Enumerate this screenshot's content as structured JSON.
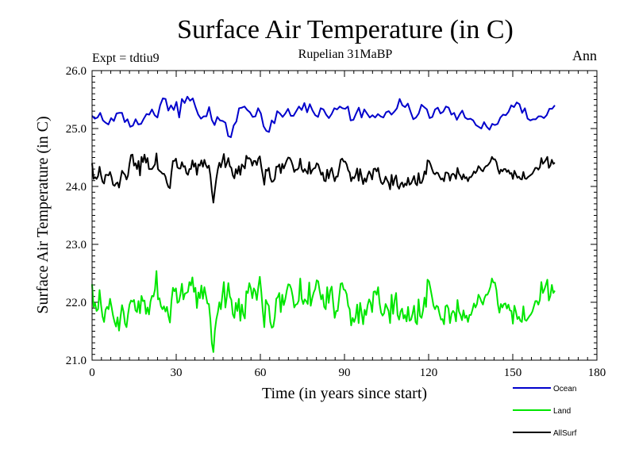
{
  "chart_data": {
    "type": "line",
    "title": "Surface Air Temperature (in C)",
    "subtitle": "Rupelian  31MaBP",
    "left_label": "Expt = tdtiu9",
    "right_label": "Ann",
    "xlabel": "Time (in years since start)",
    "ylabel": "Surface Air Temperature (in C)",
    "xlim": [
      0,
      180
    ],
    "ylim": [
      21,
      26
    ],
    "xticks": [
      0,
      30,
      60,
      90,
      120,
      150,
      180
    ],
    "xtick_labels": [
      "0",
      "30",
      "60",
      "90",
      "120",
      "150",
      "180"
    ],
    "yticks": [
      21,
      22,
      23,
      24,
      25,
      26
    ],
    "ytick_labels": [
      "21.0",
      "22.0",
      "23.0",
      "24.0",
      "25.0",
      "26.0"
    ],
    "legend_position": "bottom-right, outside plot",
    "series": [
      {
        "name": "Ocean",
        "color": "#0000cc",
        "values": [
          25.22,
          25.17,
          25.19,
          25.27,
          25.14,
          25.1,
          25.07,
          25.18,
          25.13,
          25.26,
          25.27,
          25.27,
          25.11,
          25.16,
          25.03,
          25.05,
          25.16,
          25.07,
          25.08,
          25.17,
          25.25,
          25.24,
          25.33,
          25.23,
          25.19,
          25.4,
          25.52,
          25.51,
          25.31,
          25.4,
          25.32,
          25.46,
          25.19,
          25.51,
          25.44,
          25.55,
          25.48,
          25.52,
          25.37,
          25.24,
          25.17,
          25.21,
          25.21,
          25.37,
          25.15,
          25.06,
          25.2,
          25.14,
          25.13,
          25.1,
          24.87,
          24.85,
          25.05,
          25.12,
          25.35,
          25.36,
          25.38,
          25.32,
          25.28,
          25.2,
          25.21,
          25.35,
          25.26,
          25.04,
          24.96,
          24.94,
          25.14,
          25.09,
          25.3,
          25.26,
          25.2,
          25.26,
          25.34,
          25.22,
          25.22,
          25.3,
          25.38,
          25.32,
          25.44,
          25.28,
          25.42,
          25.31,
          25.23,
          25.2,
          25.35,
          25.33,
          25.24,
          25.18,
          25.25,
          25.35,
          25.33,
          25.38,
          25.35,
          25.34,
          25.38,
          25.14,
          25.15,
          25.26,
          25.36,
          25.19,
          25.33,
          25.26,
          25.19,
          25.23,
          25.19,
          25.25,
          25.21,
          25.19,
          25.28,
          25.3,
          25.24,
          25.29,
          25.35,
          25.51,
          25.4,
          25.37,
          25.43,
          25.29,
          25.16,
          25.19,
          25.26,
          25.41,
          25.37,
          25.33,
          25.18,
          25.2,
          25.33,
          25.36,
          25.26,
          25.29,
          25.38,
          25.36,
          25.24,
          25.27,
          25.15,
          25.24,
          25.31,
          25.19,
          25.16,
          25.17,
          25.14,
          25.06,
          25.03,
          25.0,
          25.11,
          25.03,
          24.98,
          25.08,
          25.06,
          25.08,
          25.19,
          25.24,
          25.23,
          25.29,
          25.4,
          25.37,
          25.45,
          25.42,
          25.27,
          25.35,
          25.17,
          25.14,
          25.16,
          25.16,
          25.21,
          25.21,
          25.18,
          25.23,
          25.34,
          25.34,
          25.4
        ]
      },
      {
        "name": "Land",
        "color": "#00e600",
        "values": [
          22.31,
          21.92,
          21.98,
          21.85,
          21.88,
          22.21,
          21.95,
          21.75,
          21.66,
          21.87,
          21.92,
          21.88,
          22.06,
          21.92,
          21.77,
          21.66,
          21.58,
          21.74,
          21.51,
          21.75,
          21.95,
          21.84,
          21.63,
          21.57,
          21.79,
          21.96,
          22.03,
          22.01,
          22.04,
          21.86,
          21.83,
          22.02,
          21.81,
          22.11,
          22.02,
          22.03,
          21.8,
          21.91,
          21.79,
          22.01,
          22.11,
          22.1,
          22.22,
          22.54,
          22.05,
          22.07,
          21.93,
          21.88,
          21.93,
          21.84,
          21.92,
          21.76,
          21.65,
          22.02,
          22.25,
          22.19,
          22.24,
          21.99,
          22.01,
          22.14,
          22.32,
          22.05,
          22.15,
          22.16,
          22.18,
          22.35,
          22.29,
          22.43,
          22.18,
          22.25,
          21.9,
          22.17,
          22.07,
          22.29,
          22.06,
          22.26,
          22.12,
          21.98,
          21.97,
          21.7,
          21.29,
          21.14,
          21.51,
          21.71,
          21.83,
          22.0,
          21.88,
          22.12,
          22.35,
          21.91,
          22.1,
          22.33,
          22.1,
          22.04,
          21.79,
          21.73,
          21.99,
          21.85,
          22.06,
          21.68,
          21.96,
          21.79,
          21.72,
          22.19,
          22.16,
          22.33,
          22.24,
          22.07,
          22.24,
          22.19,
          22.04,
          22.26,
          22.44,
          22.18,
          21.85,
          21.57,
          22.04,
          21.98,
          21.94,
          21.66,
          21.56,
          21.58,
          21.74,
          22.06,
          22.09,
          22.16,
          21.83,
          22.13,
          21.95,
          22.05,
          22.2,
          22.31,
          22.3,
          22.23,
          22.1,
          21.91,
          21.96,
          21.97,
          22.03,
          22.41,
          22.06,
          21.97,
          22.05,
          22.02,
          21.97,
          22.34,
          21.94,
          22.07,
          22.17,
          22.23,
          22.38,
          22.36,
          22.19,
          22.05,
          22.13,
          21.92,
          21.88,
          22.26,
          21.99,
          22.2,
          22.27,
          21.99,
          21.73,
          21.85,
          21.85,
          22.09,
          22.32,
          22.33,
          22.22,
          22.21,
          22.14,
          21.94,
          21.88,
          21.6,
          21.73,
          21.66,
          21.74,
          21.96,
          21.64,
          21.99,
          21.82,
          21.62,
          21.87,
          21.78,
          21.95,
          22.05,
          21.99,
          21.83,
          22.18,
          22.19,
          22.13,
          22.26,
          21.98,
          21.82,
          21.77,
          21.81,
          21.97,
          21.91,
          21.85,
          21.64,
          22.13,
          21.8,
          22.03,
          22.16,
          21.78,
          21.7,
          21.84,
          21.89,
          21.72,
          21.78,
          21.67,
          21.92,
          21.68,
          21.7,
          21.8,
          21.94,
          21.66,
          21.62,
          22.05,
          21.76,
          21.73,
          21.86,
          22.08,
          21.92,
          22.39,
          22.36,
          22.23,
          22.09,
          21.94,
          21.88,
          21.94,
          21.92,
          21.8,
          21.7,
          21.71,
          21.62,
          21.93,
          21.95,
          21.89,
          21.64,
          21.8,
          21.85,
          21.82,
          21.67,
          22.04,
          21.84,
          21.78,
          21.69,
          21.86,
          21.73,
          21.77,
          21.66,
          21.78,
          21.78,
          21.87,
          21.98,
          21.91,
          21.97,
          22.13,
          22.08,
          22.01,
          21.96,
          22.07,
          22.13,
          22.13,
          22.19,
          22.27,
          22.41,
          22.34,
          22.34,
          22.21,
          21.96,
          21.82,
          21.97,
          21.91,
          21.97,
          21.98,
          21.89,
          21.96,
          21.86,
          21.85,
          21.63,
          21.94,
          21.84,
          21.71,
          21.75,
          21.68,
          21.66,
          21.93,
          21.7,
          21.68,
          21.72,
          21.76,
          21.79,
          21.84,
          21.93,
          22.02,
          22.02,
          21.96,
          22.04,
          22.35,
          22.16,
          22.22,
          22.3,
          22.39,
          22.03,
          22.11,
          22.3,
          22.16,
          22.2
        ]
      },
      {
        "name": "AllSurf",
        "color": "#000000",
        "values": [
          24.4,
          24.13,
          24.16,
          24.13,
          24.18,
          24.34,
          24.19,
          24.08,
          24.05,
          24.2,
          24.2,
          24.19,
          24.25,
          24.16,
          24.03,
          24.01,
          24.05,
          24.07,
          23.98,
          24.13,
          24.27,
          24.23,
          24.2,
          24.12,
          24.19,
          24.39,
          24.54,
          24.55,
          24.36,
          24.4,
          24.3,
          24.44,
          24.19,
          24.51,
          24.42,
          24.55,
          24.41,
          24.49,
          24.3,
          24.3,
          24.3,
          24.34,
          24.38,
          24.57,
          24.3,
          24.27,
          24.25,
          24.22,
          24.22,
          24.17,
          24.06,
          23.99,
          23.97,
          24.24,
          24.44,
          24.44,
          24.48,
          24.33,
          24.31,
          24.31,
          24.42,
          24.34,
          24.35,
          24.23,
          24.2,
          24.3,
          24.3,
          24.45,
          24.34,
          24.4,
          24.2,
          24.38,
          24.36,
          24.45,
          24.34,
          24.46,
          24.37,
          24.32,
          24.36,
          24.19,
          23.92,
          23.72,
          23.94,
          24.14,
          24.3,
          24.41,
          24.33,
          24.44,
          24.56,
          24.33,
          24.4,
          24.49,
          24.35,
          24.32,
          24.19,
          24.14,
          24.3,
          24.22,
          24.35,
          24.2,
          24.38,
          24.35,
          24.31,
          24.53,
          24.48,
          24.49,
          24.46,
          24.36,
          24.44,
          24.44,
          24.37,
          24.48,
          24.52,
          24.34,
          24.19,
          24.03,
          24.29,
          24.27,
          24.32,
          24.15,
          24.08,
          24.09,
          24.13,
          24.34,
          24.34,
          24.38,
          24.23,
          24.39,
          24.31,
          24.38,
          24.45,
          24.5,
          24.49,
          24.44,
          24.36,
          24.25,
          24.29,
          24.29,
          24.32,
          24.48,
          24.3,
          24.25,
          24.3,
          24.26,
          24.22,
          24.42,
          24.22,
          24.28,
          24.31,
          24.32,
          24.4,
          24.38,
          24.29,
          24.2,
          24.24,
          24.1,
          24.09,
          24.29,
          24.14,
          24.26,
          24.32,
          24.2,
          24.09,
          24.17,
          24.17,
          24.31,
          24.46,
          24.48,
          24.43,
          24.43,
          24.38,
          24.28,
          24.24,
          24.09,
          24.16,
          24.14,
          24.2,
          24.31,
          24.1,
          24.3,
          24.17,
          24.04,
          24.14,
          24.08,
          24.19,
          24.26,
          24.21,
          24.12,
          24.3,
          24.31,
          24.26,
          24.32,
          24.17,
          24.07,
          24.04,
          24.08,
          24.17,
          24.11,
          24.06,
          23.95,
          24.2,
          24.02,
          24.13,
          24.19,
          24.01,
          23.96,
          24.04,
          24.07,
          23.99,
          24.05,
          24.02,
          24.15,
          24.03,
          24.05,
          24.11,
          24.18,
          24.05,
          24.02,
          24.23,
          24.06,
          24.06,
          24.13,
          24.26,
          24.21,
          24.45,
          24.44,
          24.38,
          24.3,
          24.23,
          24.21,
          24.24,
          24.23,
          24.17,
          24.12,
          24.14,
          24.09,
          24.24,
          24.24,
          24.22,
          24.1,
          24.2,
          24.22,
          24.2,
          24.13,
          24.32,
          24.22,
          24.18,
          24.12,
          24.21,
          24.14,
          24.16,
          24.09,
          24.16,
          24.16,
          24.2,
          24.26,
          24.23,
          24.27,
          24.35,
          24.32,
          24.28,
          24.26,
          24.32,
          24.35,
          24.36,
          24.39,
          24.43,
          24.51,
          24.47,
          24.47,
          24.42,
          24.3,
          24.22,
          24.29,
          24.26,
          24.3,
          24.3,
          24.25,
          24.28,
          24.22,
          24.23,
          24.13,
          24.27,
          24.21,
          24.15,
          24.17,
          24.13,
          24.12,
          24.25,
          24.14,
          24.13,
          24.16,
          24.18,
          24.2,
          24.22,
          24.27,
          24.32,
          24.32,
          24.29,
          24.33,
          24.49,
          24.39,
          24.42,
          24.46,
          24.51,
          24.32,
          24.36,
          24.46,
          24.39,
          24.41
        ]
      }
    ]
  }
}
